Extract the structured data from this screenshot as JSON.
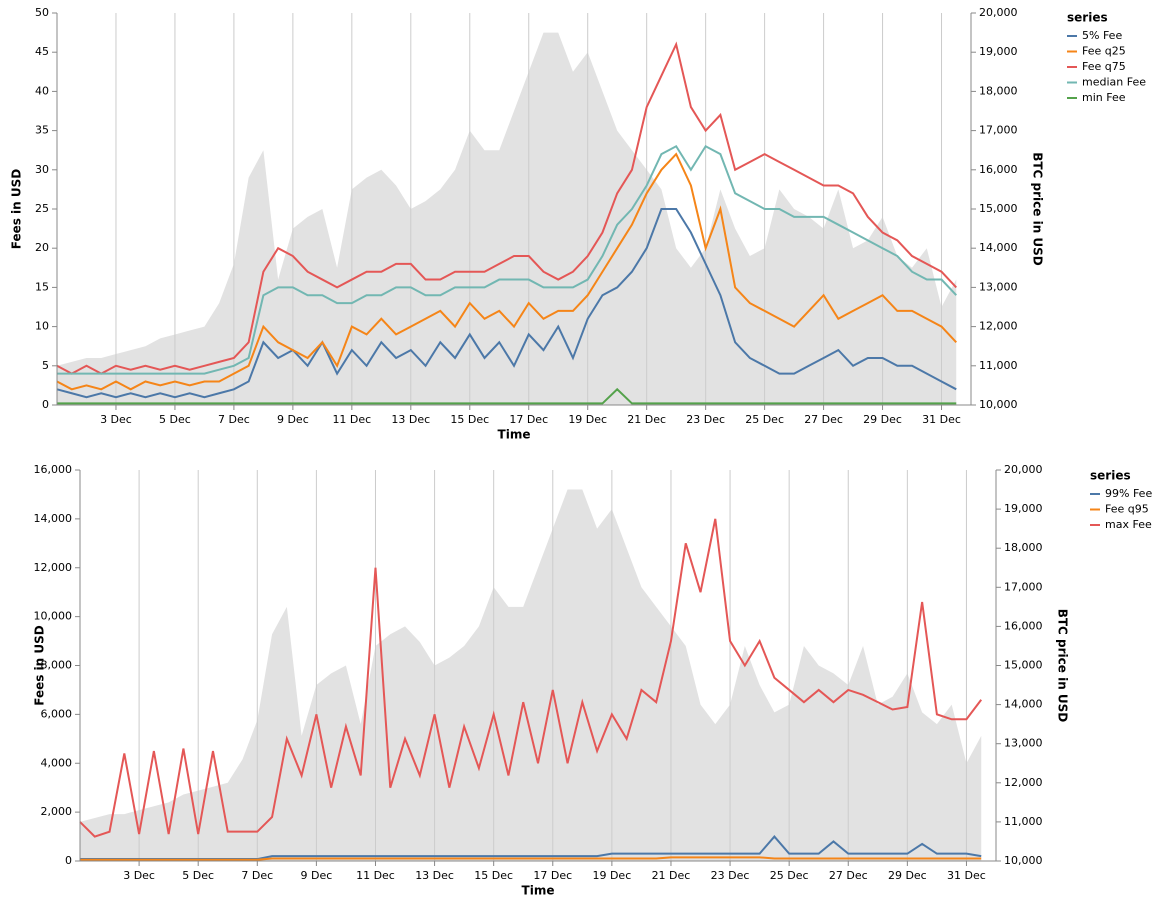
{
  "chart_data": [
    {
      "type": "line",
      "x_label": "Time",
      "y_label": "Fees in USD",
      "y2_label": "BTC price in USD",
      "legend_title": "series",
      "grid": "x",
      "x": [
        1,
        1.5,
        2,
        2.5,
        3,
        3.5,
        4,
        4.5,
        5,
        5.5,
        6,
        6.5,
        7,
        7.5,
        8,
        8.5,
        9,
        9.5,
        10,
        10.5,
        11,
        11.5,
        12,
        12.5,
        13,
        13.5,
        14,
        14.5,
        15,
        15.5,
        16,
        16.5,
        17,
        17.5,
        18,
        18.5,
        19,
        19.5,
        20,
        20.5,
        21,
        21.5,
        22,
        22.5,
        23,
        23.5,
        24,
        24.5,
        25,
        25.5,
        26,
        26.5,
        27,
        27.5,
        28,
        28.5,
        29,
        29.5,
        30,
        30.5,
        31,
        31.5
      ],
      "xlim": [
        1,
        32
      ],
      "xticks": [
        {
          "value": 3,
          "label": "3 Dec"
        },
        {
          "value": 5,
          "label": "5 Dec"
        },
        {
          "value": 7,
          "label": "7 Dec"
        },
        {
          "value": 9,
          "label": "9 Dec"
        },
        {
          "value": 11,
          "label": "11 Dec"
        },
        {
          "value": 13,
          "label": "13 Dec"
        },
        {
          "value": 15,
          "label": "15 Dec"
        },
        {
          "value": 17,
          "label": "17 Dec"
        },
        {
          "value": 19,
          "label": "19 Dec"
        },
        {
          "value": 21,
          "label": "21 Dec"
        },
        {
          "value": 23,
          "label": "23 Dec"
        },
        {
          "value": 25,
          "label": "25 Dec"
        },
        {
          "value": 27,
          "label": "27 Dec"
        },
        {
          "value": 29,
          "label": "29 Dec"
        },
        {
          "value": 31,
          "label": "31 Dec"
        }
      ],
      "ylim": [
        0,
        50
      ],
      "yticks": [
        0,
        5,
        10,
        15,
        20,
        25,
        30,
        35,
        40,
        45,
        50
      ],
      "y2lim": [
        10000,
        20000
      ],
      "y2ticks": [
        {
          "value": 10000,
          "label": "10,000"
        },
        {
          "value": 11000,
          "label": "11,000"
        },
        {
          "value": 12000,
          "label": "12,000"
        },
        {
          "value": 13000,
          "label": "13,000"
        },
        {
          "value": 14000,
          "label": "14,000"
        },
        {
          "value": 15000,
          "label": "15,000"
        },
        {
          "value": 16000,
          "label": "16,000"
        },
        {
          "value": 17000,
          "label": "17,000"
        },
        {
          "value": 18000,
          "label": "18,000"
        },
        {
          "value": 19000,
          "label": "19,000"
        },
        {
          "value": 20000,
          "label": "20,000"
        }
      ],
      "price_area": {
        "axis": "y2",
        "color": "#e2e2e2",
        "values": [
          11000,
          11100,
          11200,
          11200,
          11300,
          11400,
          11500,
          11700,
          11800,
          11900,
          12000,
          12600,
          13600,
          15800,
          16500,
          13200,
          14500,
          14800,
          15000,
          13500,
          15500,
          15800,
          16000,
          15600,
          15000,
          15200,
          15500,
          16000,
          17000,
          16500,
          16500,
          17500,
          18500,
          19500,
          19500,
          18500,
          19000,
          18000,
          17000,
          16500,
          16000,
          15500,
          14000,
          13500,
          14000,
          15500,
          14500,
          13800,
          14000,
          15500,
          15000,
          14800,
          14500,
          15500,
          14000,
          14200,
          14800,
          13800,
          13500,
          14000,
          12500,
          13200
        ]
      },
      "series": [
        {
          "name": "5% Fee",
          "color": "#4c78a8",
          "values": [
            2,
            1.5,
            1,
            1.5,
            1,
            1.5,
            1,
            1.5,
            1,
            1.5,
            1,
            1.5,
            2,
            3,
            8,
            6,
            7,
            5,
            8,
            4,
            7,
            5,
            8,
            6,
            7,
            5,
            8,
            6,
            9,
            6,
            8,
            5,
            9,
            7,
            10,
            6,
            11,
            14,
            15,
            17,
            20,
            25,
            25,
            22,
            18,
            14,
            8,
            6,
            5,
            4,
            4,
            5,
            6,
            7,
            5,
            6,
            6,
            5,
            5,
            4,
            3,
            2
          ]
        },
        {
          "name": "Fee q25",
          "color": "#f58518",
          "values": [
            3,
            2,
            2.5,
            2,
            3,
            2,
            3,
            2.5,
            3,
            2.5,
            3,
            3,
            4,
            5,
            10,
            8,
            7,
            6,
            8,
            5,
            10,
            9,
            11,
            9,
            10,
            11,
            12,
            10,
            13,
            11,
            12,
            10,
            13,
            11,
            12,
            12,
            14,
            17,
            20,
            23,
            27,
            30,
            32,
            28,
            20,
            25,
            15,
            13,
            12,
            11,
            10,
            12,
            14,
            11,
            12,
            13,
            14,
            12,
            12,
            11,
            10,
            8
          ]
        },
        {
          "name": "Fee q75",
          "color": "#e45756",
          "values": [
            5,
            4,
            5,
            4,
            5,
            4.5,
            5,
            4.5,
            5,
            4.5,
            5,
            5.5,
            6,
            8,
            17,
            20,
            19,
            17,
            16,
            15,
            16,
            17,
            17,
            18,
            18,
            16,
            16,
            17,
            17,
            17,
            18,
            19,
            19,
            17,
            16,
            17,
            19,
            22,
            27,
            30,
            38,
            42,
            46,
            38,
            35,
            37,
            30,
            31,
            32,
            31,
            30,
            29,
            28,
            28,
            27,
            24,
            22,
            21,
            19,
            18,
            17,
            15
          ]
        },
        {
          "name": "median Fee",
          "color": "#72b7b2",
          "values": [
            4,
            4,
            4,
            4,
            4,
            4,
            4,
            4,
            4,
            4,
            4,
            4.5,
            5,
            6,
            14,
            15,
            15,
            14,
            14,
            13,
            13,
            14,
            14,
            15,
            15,
            14,
            14,
            15,
            15,
            15,
            16,
            16,
            16,
            15,
            15,
            15,
            16,
            19,
            23,
            25,
            28,
            32,
            33,
            30,
            33,
            32,
            27,
            26,
            25,
            25,
            24,
            24,
            24,
            23,
            22,
            21,
            20,
            19,
            17,
            16,
            16,
            14
          ]
        },
        {
          "name": "min Fee",
          "color": "#54a24b",
          "values": [
            0.2,
            0.2,
            0.2,
            0.2,
            0.2,
            0.2,
            0.2,
            0.2,
            0.2,
            0.2,
            0.2,
            0.2,
            0.2,
            0.2,
            0.2,
            0.2,
            0.2,
            0.2,
            0.2,
            0.2,
            0.2,
            0.2,
            0.2,
            0.2,
            0.2,
            0.2,
            0.2,
            0.2,
            0.2,
            0.2,
            0.2,
            0.2,
            0.2,
            0.2,
            0.2,
            0.2,
            0.2,
            0.2,
            2,
            0.2,
            0.2,
            0.2,
            0.2,
            0.2,
            0.2,
            0.2,
            0.2,
            0.2,
            0.2,
            0.2,
            0.2,
            0.2,
            0.2,
            0.2,
            0.2,
            0.2,
            0.2,
            0.2,
            0.2,
            0.2,
            0.2,
            0.2
          ]
        }
      ]
    },
    {
      "type": "line",
      "x_label": "Time",
      "y_label": "Fees in USD",
      "y2_label": "BTC price in USD",
      "legend_title": "series",
      "grid": "x",
      "x": [
        1,
        1.5,
        2,
        2.5,
        3,
        3.5,
        4,
        4.5,
        5,
        5.5,
        6,
        6.5,
        7,
        7.5,
        8,
        8.5,
        9,
        9.5,
        10,
        10.5,
        11,
        11.5,
        12,
        12.5,
        13,
        13.5,
        14,
        14.5,
        15,
        15.5,
        16,
        16.5,
        17,
        17.5,
        18,
        18.5,
        19,
        19.5,
        20,
        20.5,
        21,
        21.5,
        22,
        22.5,
        23,
        23.5,
        24,
        24.5,
        25,
        25.5,
        26,
        26.5,
        27,
        27.5,
        28,
        28.5,
        29,
        29.5,
        30,
        30.5,
        31,
        31.5
      ],
      "xlim": [
        1,
        32
      ],
      "xticks": [
        {
          "value": 3,
          "label": "3 Dec"
        },
        {
          "value": 5,
          "label": "5 Dec"
        },
        {
          "value": 7,
          "label": "7 Dec"
        },
        {
          "value": 9,
          "label": "9 Dec"
        },
        {
          "value": 11,
          "label": "11 Dec"
        },
        {
          "value": 13,
          "label": "13 Dec"
        },
        {
          "value": 15,
          "label": "15 Dec"
        },
        {
          "value": 17,
          "label": "17 Dec"
        },
        {
          "value": 19,
          "label": "19 Dec"
        },
        {
          "value": 21,
          "label": "21 Dec"
        },
        {
          "value": 23,
          "label": "23 Dec"
        },
        {
          "value": 25,
          "label": "25 Dec"
        },
        {
          "value": 27,
          "label": "27 Dec"
        },
        {
          "value": 29,
          "label": "29 Dec"
        },
        {
          "value": 31,
          "label": "31 Dec"
        }
      ],
      "ylim": [
        0,
        16000
      ],
      "yticks": [
        0,
        {
          "value": 2000,
          "label": "2,000"
        },
        {
          "value": 4000,
          "label": "4,000"
        },
        {
          "value": 6000,
          "label": "6,000"
        },
        {
          "value": 8000,
          "label": "8,000"
        },
        {
          "value": 10000,
          "label": "10,000"
        },
        {
          "value": 12000,
          "label": "12,000"
        },
        {
          "value": 14000,
          "label": "14,000"
        },
        {
          "value": 16000,
          "label": "16,000"
        }
      ],
      "y2lim": [
        10000,
        20000
      ],
      "y2ticks": [
        {
          "value": 10000,
          "label": "10,000"
        },
        {
          "value": 11000,
          "label": "11,000"
        },
        {
          "value": 12000,
          "label": "12,000"
        },
        {
          "value": 13000,
          "label": "13,000"
        },
        {
          "value": 14000,
          "label": "14,000"
        },
        {
          "value": 15000,
          "label": "15,000"
        },
        {
          "value": 16000,
          "label": "16,000"
        },
        {
          "value": 17000,
          "label": "17,000"
        },
        {
          "value": 18000,
          "label": "18,000"
        },
        {
          "value": 19000,
          "label": "19,000"
        },
        {
          "value": 20000,
          "label": "20,000"
        }
      ],
      "price_area": {
        "axis": "y2",
        "color": "#e2e2e2",
        "values": [
          11000,
          11100,
          11200,
          11200,
          11300,
          11400,
          11500,
          11700,
          11800,
          11900,
          12000,
          12600,
          13600,
          15800,
          16500,
          13200,
          14500,
          14800,
          15000,
          13500,
          15500,
          15800,
          16000,
          15600,
          15000,
          15200,
          15500,
          16000,
          17000,
          16500,
          16500,
          17500,
          18500,
          19500,
          19500,
          18500,
          19000,
          18000,
          17000,
          16500,
          16000,
          15500,
          14000,
          13500,
          14000,
          15500,
          14500,
          13800,
          14000,
          15500,
          15000,
          14800,
          14500,
          15500,
          14000,
          14200,
          14800,
          13800,
          13500,
          14000,
          12500,
          13200
        ]
      },
      "series": [
        {
          "name": "99% Fee",
          "color": "#4c78a8",
          "values": [
            80,
            80,
            80,
            80,
            80,
            80,
            80,
            80,
            80,
            80,
            80,
            80,
            80,
            200,
            200,
            200,
            200,
            200,
            200,
            200,
            200,
            200,
            200,
            200,
            200,
            200,
            200,
            200,
            200,
            200,
            200,
            200,
            200,
            200,
            200,
            200,
            300,
            300,
            300,
            300,
            300,
            300,
            300,
            300,
            300,
            300,
            300,
            1000,
            300,
            300,
            300,
            800,
            300,
            300,
            300,
            300,
            300,
            700,
            300,
            300,
            300,
            200
          ]
        },
        {
          "name": "Fee q95",
          "color": "#f58518",
          "values": [
            50,
            50,
            50,
            50,
            50,
            50,
            50,
            50,
            50,
            50,
            50,
            50,
            50,
            100,
            100,
            100,
            100,
            100,
            100,
            100,
            100,
            100,
            100,
            100,
            100,
            100,
            100,
            100,
            100,
            100,
            100,
            100,
            100,
            100,
            100,
            100,
            100,
            100,
            100,
            100,
            150,
            150,
            150,
            150,
            150,
            150,
            150,
            100,
            100,
            100,
            100,
            100,
            100,
            100,
            100,
            100,
            100,
            100,
            100,
            100,
            100,
            100
          ]
        },
        {
          "name": "max Fee",
          "color": "#e45756",
          "values": [
            1600,
            1000,
            1200,
            4400,
            1100,
            4500,
            1100,
            4600,
            1100,
            4500,
            1200,
            1200,
            1200,
            1800,
            5000,
            3500,
            6000,
            3000,
            5500,
            3500,
            12000,
            3000,
            5000,
            3500,
            6000,
            3000,
            5500,
            3800,
            6000,
            3500,
            6500,
            4000,
            7000,
            4000,
            6500,
            4500,
            6000,
            5000,
            7000,
            6500,
            9000,
            13000,
            11000,
            14000,
            9000,
            8000,
            9000,
            7500,
            7000,
            6500,
            7000,
            6500,
            7000,
            6800,
            6500,
            6200,
            6300,
            10600,
            6000,
            5800,
            5800,
            6600
          ]
        }
      ]
    }
  ]
}
